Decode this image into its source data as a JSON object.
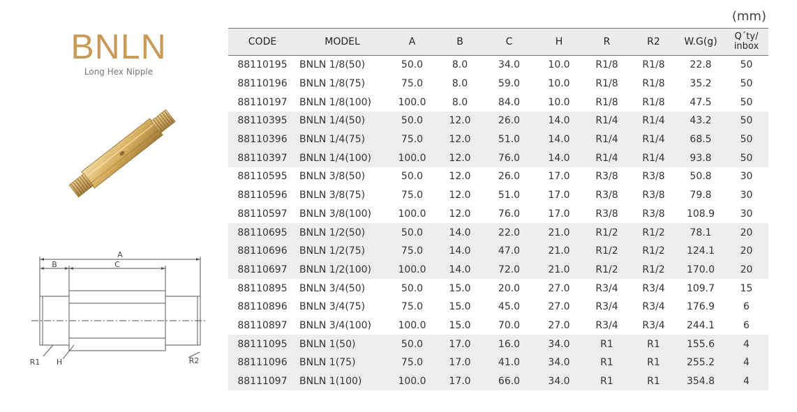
{
  "product": {
    "title": "BNLN",
    "subtitle": "Long Hex Nipple"
  },
  "unit": "(mm)",
  "drawing": {
    "labels": {
      "a": "A",
      "b": "B",
      "c": "C",
      "r1": "R1",
      "h": "H",
      "r2": "R2"
    }
  },
  "table": {
    "headers": {
      "code": "CODE",
      "model": "MODEL",
      "a": "A",
      "b": "B",
      "c": "C",
      "h": "H",
      "r": "R",
      "r2": "R2",
      "wg": "W.G(g)",
      "qty_line1": "Q´ty/",
      "qty_line2": "inbox"
    },
    "rows": [
      [
        "88110195",
        "BNLN 1/8(50)",
        "50.0",
        "8.0",
        "34.0",
        "10.0",
        "R1/8",
        "R1/8",
        "22.8",
        "50"
      ],
      [
        "88110196",
        "BNLN 1/8(75)",
        "75.0",
        "8.0",
        "59.0",
        "10.0",
        "R1/8",
        "R1/8",
        "35.2",
        "50"
      ],
      [
        "88110197",
        "BNLN 1/8(100)",
        "100.0",
        "8.0",
        "84.0",
        "10.0",
        "R1/8",
        "R1/8",
        "47.5",
        "50"
      ],
      [
        "88110395",
        "BNLN 1/4(50)",
        "50.0",
        "12.0",
        "26.0",
        "14.0",
        "R1/4",
        "R1/4",
        "43.2",
        "50"
      ],
      [
        "88110396",
        "BNLN 1/4(75)",
        "75.0",
        "12.0",
        "51.0",
        "14.0",
        "R1/4",
        "R1/4",
        "68.5",
        "50"
      ],
      [
        "88110397",
        "BNLN 1/4(100)",
        "100.0",
        "12.0",
        "76.0",
        "14.0",
        "R1/4",
        "R1/4",
        "93.8",
        "50"
      ],
      [
        "88110595",
        "BNLN 3/8(50)",
        "50.0",
        "12.0",
        "26.0",
        "17.0",
        "R3/8",
        "R3/8",
        "50.8",
        "30"
      ],
      [
        "88110596",
        "BNLN 3/8(75)",
        "75.0",
        "12.0",
        "51.0",
        "17.0",
        "R3/8",
        "R3/8",
        "79.8",
        "30"
      ],
      [
        "88110597",
        "BNLN 3/8(100)",
        "100.0",
        "12.0",
        "76.0",
        "17.0",
        "R3/8",
        "R3/8",
        "108.9",
        "30"
      ],
      [
        "88110695",
        "BNLN 1/2(50)",
        "50.0",
        "14.0",
        "22.0",
        "21.0",
        "R1/2",
        "R1/2",
        "78.1",
        "20"
      ],
      [
        "88110696",
        "BNLN 1/2(75)",
        "75.0",
        "14.0",
        "47.0",
        "21.0",
        "R1/2",
        "R1/2",
        "124.1",
        "20"
      ],
      [
        "88110697",
        "BNLN 1/2(100)",
        "100.0",
        "14.0",
        "72.0",
        "21.0",
        "R1/2",
        "R1/2",
        "170.0",
        "20"
      ],
      [
        "88110895",
        "BNLN 3/4(50)",
        "50.0",
        "15.0",
        "20.0",
        "27.0",
        "R3/4",
        "R3/4",
        "109.7",
        "15"
      ],
      [
        "88110896",
        "BNLN 3/4(75)",
        "75.0",
        "15.0",
        "45.0",
        "27.0",
        "R3/4",
        "R3/4",
        "176.9",
        "6"
      ],
      [
        "88110897",
        "BNLN 3/4(100)",
        "100.0",
        "15.0",
        "70.0",
        "27.0",
        "R3/4",
        "R3/4",
        "244.1",
        "6"
      ],
      [
        "88111095",
        "BNLN 1(50)",
        "50.0",
        "17.0",
        "16.0",
        "34.0",
        "R1",
        "R1",
        "155.6",
        "4"
      ],
      [
        "88111096",
        "BNLN 1(75)",
        "75.0",
        "17.0",
        "41.0",
        "34.0",
        "R1",
        "R1",
        "255.2",
        "4"
      ],
      [
        "88111097",
        "BNLN 1(100)",
        "100.0",
        "17.0",
        "66.0",
        "34.0",
        "R1",
        "R1",
        "354.8",
        "4"
      ]
    ]
  },
  "colors": {
    "brand": "#c89a55",
    "header_bg": "#ececec",
    "shade_bg": "#ededed"
  }
}
